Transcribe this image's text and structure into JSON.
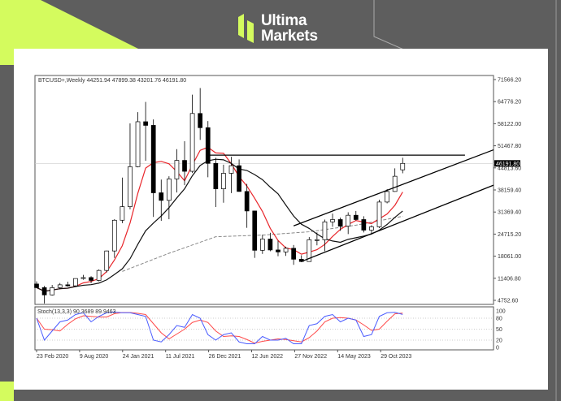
{
  "brand": {
    "line1": "Ultima",
    "line2": "Markets",
    "accent": "#d4fb5e"
  },
  "chart_data": {
    "type": "candlestick",
    "header": "BTCUSD+,Weekly  44251.94 47899.38 43201.76 46191.80",
    "symbol": "BTCUSD+",
    "timeframe": "Weekly",
    "current_price": "46191.80",
    "ylim": [
      4752.6,
      71566.2
    ],
    "y_ticks": [
      "71566.20",
      "64776.20",
      "58122.00",
      "51467.80",
      "44813.60",
      "38159.40",
      "31369.40",
      "24715.20",
      "18061.00",
      "11406.80",
      "4752.60"
    ],
    "x_ticks": [
      "23 Feb 2020",
      "9 Aug 2020",
      "24 Jan 2021",
      "11 Jul 2021",
      "26 Dec 2021",
      "12 Jun 2022",
      "27 Nov 2022",
      "14 May 2023",
      "29 Oct 2023"
    ],
    "candles_columns": [
      "month",
      "open",
      "high",
      "low",
      "close"
    ],
    "candles": [
      [
        "2020-02",
        9700,
        10500,
        8500,
        8600
      ],
      [
        "2020-03",
        8600,
        9100,
        3800,
        6400
      ],
      [
        "2020-04",
        6400,
        9400,
        6200,
        8600
      ],
      [
        "2020-05",
        8600,
        10000,
        8100,
        9450
      ],
      [
        "2020-06",
        9450,
        10400,
        8900,
        9140
      ],
      [
        "2020-07",
        9140,
        11400,
        8900,
        11350
      ],
      [
        "2020-08",
        11350,
        12450,
        11000,
        11650
      ],
      [
        "2020-09",
        11650,
        12050,
        9900,
        10780
      ],
      [
        "2020-10",
        10780,
        14100,
        10500,
        13800
      ],
      [
        "2020-11",
        13800,
        19800,
        13200,
        19700
      ],
      [
        "2020-12",
        19700,
        29300,
        17600,
        29000
      ],
      [
        "2021-01",
        29000,
        41900,
        28100,
        33100
      ],
      [
        "2021-02",
        33100,
        58300,
        32300,
        45200
      ],
      [
        "2021-03",
        45200,
        61700,
        45000,
        58800
      ],
      [
        "2021-04",
        58800,
        64800,
        47000,
        57700
      ],
      [
        "2021-05",
        57700,
        59500,
        30000,
        37300
      ],
      [
        "2021-06",
        37300,
        41300,
        28800,
        35000
      ],
      [
        "2021-07",
        35000,
        42300,
        29300,
        41500
      ],
      [
        "2021-08",
        41500,
        50500,
        37400,
        47100
      ],
      [
        "2021-09",
        47100,
        52900,
        39600,
        43800
      ],
      [
        "2021-10",
        43800,
        67000,
        43300,
        61300
      ],
      [
        "2021-11",
        61300,
        69000,
        53300,
        57000
      ],
      [
        "2021-12",
        57000,
        59000,
        42000,
        46200
      ],
      [
        "2022-01",
        46200,
        47900,
        33000,
        38500
      ],
      [
        "2022-02",
        38500,
        45800,
        34300,
        43200
      ],
      [
        "2022-03",
        43200,
        48200,
        37200,
        45500
      ],
      [
        "2022-04",
        45500,
        47400,
        37600,
        37700
      ],
      [
        "2022-05",
        37700,
        40000,
        26700,
        31800
      ],
      [
        "2022-06",
        31800,
        31900,
        17600,
        19900
      ],
      [
        "2022-07",
        19900,
        24600,
        18800,
        23300
      ],
      [
        "2022-08",
        23300,
        25200,
        19600,
        20000
      ],
      [
        "2022-09",
        20000,
        22800,
        18100,
        19400
      ],
      [
        "2022-10",
        19400,
        21000,
        18200,
        20500
      ],
      [
        "2022-11",
        20500,
        21500,
        15500,
        17200
      ],
      [
        "2022-12",
        17200,
        18400,
        16300,
        16500
      ],
      [
        "2023-01",
        16500,
        23900,
        16500,
        23100
      ],
      [
        "2023-02",
        23100,
        25300,
        21400,
        23100
      ],
      [
        "2023-03",
        23100,
        29200,
        19600,
        28500
      ],
      [
        "2023-04",
        28500,
        31000,
        27000,
        29200
      ],
      [
        "2023-05",
        29200,
        29800,
        25800,
        27200
      ],
      [
        "2023-06",
        27200,
        31400,
        24800,
        30500
      ],
      [
        "2023-07",
        30500,
        31800,
        28900,
        29200
      ],
      [
        "2023-08",
        29200,
        30200,
        25300,
        26000
      ],
      [
        "2023-09",
        26000,
        27500,
        24900,
        27000
      ],
      [
        "2023-10",
        27000,
        35200,
        26600,
        34500
      ],
      [
        "2023-11",
        34500,
        38400,
        34100,
        37700
      ],
      [
        "2023-12",
        37700,
        44700,
        37600,
        42300
      ],
      [
        "2024-01",
        44251.94,
        47899.38,
        43201.76,
        46191.8
      ]
    ],
    "ma_lines": [
      {
        "color": "#e8262b",
        "period_months": 5
      },
      {
        "color": "#111111",
        "period_months": 12
      }
    ],
    "long_ma": {
      "color": "#888888",
      "style": "dashed",
      "points": [
        [
          "2021-01",
          13500
        ],
        [
          "2021-07",
          19000
        ],
        [
          "2022-01",
          24000
        ],
        [
          "2022-07",
          24500
        ],
        [
          "2023-01",
          25500
        ],
        [
          "2023-07",
          27500
        ],
        [
          "2024-01",
          30200
        ]
      ]
    },
    "trendlines": [
      {
        "name": "resistance",
        "from": [
          "2021-12",
          48700
        ],
        "to": [
          "2024-09",
          48700
        ]
      },
      {
        "name": "channel-upper",
        "from": [
          "2022-11",
          27300
        ],
        "to": [
          "2025-01",
          50300
        ]
      },
      {
        "name": "channel-lower",
        "from": [
          "2022-12",
          16500
        ],
        "to": [
          "2025-01",
          39600
        ]
      }
    ],
    "stochastic": {
      "label": "Stoch(13,3,3) 90.3689 89.9463",
      "levels": [
        80,
        50,
        20
      ],
      "axis_labels": [
        "100",
        "80",
        "50",
        "20",
        "0"
      ],
      "k_color": "#4a5cff",
      "d_color": "#ff4a4a",
      "k": [
        80,
        20,
        45,
        70,
        75,
        90,
        95,
        70,
        85,
        95,
        97,
        95,
        95,
        90,
        85,
        20,
        15,
        35,
        60,
        55,
        90,
        80,
        35,
        20,
        35,
        40,
        15,
        10,
        10,
        30,
        20,
        20,
        25,
        10,
        10,
        60,
        65,
        85,
        90,
        70,
        80,
        75,
        30,
        35,
        85,
        95,
        96,
        90.37
      ]
    }
  }
}
